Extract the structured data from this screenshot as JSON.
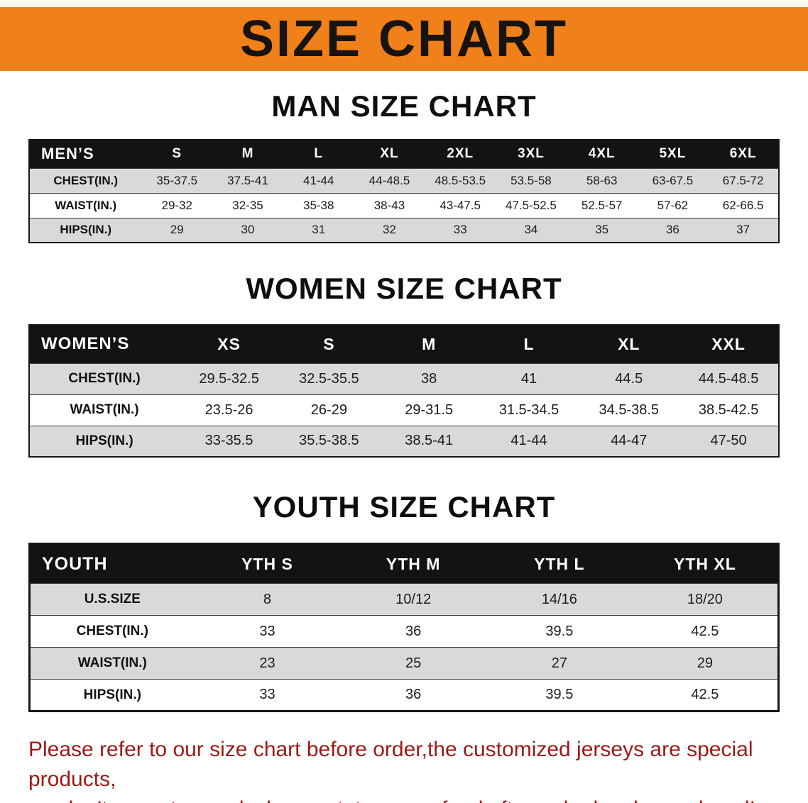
{
  "banner": {
    "title": "SIZE CHART"
  },
  "sections": [
    {
      "id": "men",
      "heading": "MAN SIZE CHART",
      "columns": [
        "MEN’S",
        "S",
        "M",
        "L",
        "XL",
        "2XL",
        "3XL",
        "4XL",
        "5XL",
        "6XL"
      ],
      "rows": [
        {
          "label": "CHEST(IN.)",
          "values": [
            "35-37.5",
            "37.5-41",
            "41-44",
            "44-48.5",
            "48.5-53.5",
            "53.5-58",
            "58-63",
            "63-67.5",
            "67.5-72"
          ]
        },
        {
          "label": "WAIST(IN.)",
          "values": [
            "29-32",
            "32-35",
            "35-38",
            "38-43",
            "43-47.5",
            "47.5-52.5",
            "52.5-57",
            "57-62",
            "62-66.5"
          ]
        },
        {
          "label": "HIPS(IN.)",
          "values": [
            "29",
            "30",
            "31",
            "32",
            "33",
            "34",
            "35",
            "36",
            "37"
          ]
        }
      ]
    },
    {
      "id": "women",
      "heading": "WOMEN SIZE CHART",
      "columns": [
        "WOMEN’S",
        "XS",
        "S",
        "M",
        "L",
        "XL",
        "XXL"
      ],
      "rows": [
        {
          "label": "CHEST(IN.)",
          "values": [
            "29.5-32.5",
            "32.5-35.5",
            "38",
            "41",
            "44.5",
            "44.5-48.5"
          ]
        },
        {
          "label": "WAIST(IN.)",
          "values": [
            "23.5-26",
            "26-29",
            "29-31.5",
            "31.5-34.5",
            "34.5-38.5",
            "38.5-42.5"
          ]
        },
        {
          "label": "HIPS(IN.)",
          "values": [
            "33-35.5",
            "35.5-38.5",
            "38.5-41",
            "41-44",
            "44-47",
            "47-50"
          ]
        }
      ]
    },
    {
      "id": "youth",
      "heading": "YOUTH SIZE CHART",
      "columns": [
        "YOUTH",
        "YTH S",
        "YTH M",
        "YTH L",
        "YTH XL"
      ],
      "rows": [
        {
          "label": "U.S.SIZE",
          "values": [
            "8",
            "10/12",
            "14/16",
            "18/20"
          ]
        },
        {
          "label": "CHEST(IN.)",
          "values": [
            "33",
            "36",
            "39.5",
            "42.5"
          ]
        },
        {
          "label": "WAIST(IN.)",
          "values": [
            "23",
            "25",
            "27",
            "29"
          ]
        },
        {
          "label": "HIPS(IN.)",
          "values": [
            "33",
            "36",
            "39.5",
            "42.5"
          ]
        }
      ]
    }
  ],
  "disclaimer": {
    "line1": "Please refer to our size chart before order,the customized jerseys are special products,",
    "line2": "we don’t accept cancel, change, teturn or refund after order has been placed!"
  },
  "colors": {
    "banner_bg": "#F08019",
    "heading_color": "#0E0E0E",
    "table_header_bg": "#131313",
    "table_header_text": "#FFFFFF",
    "row_bg": "#FFFFFF",
    "row_alt_bg": "#D9D9D9",
    "disclaimer_color": "#9C1A15"
  }
}
